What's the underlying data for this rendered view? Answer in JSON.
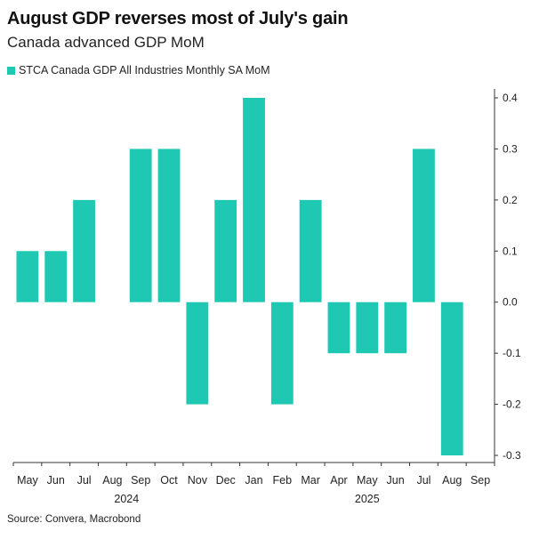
{
  "title": "August GDP reverses most of July's gain",
  "subtitle": "Canada advanced GDP MoM",
  "source": "Source: Convera, Macrobond",
  "colors": {
    "bar": "#1ec8b2",
    "axis": "#333333"
  },
  "chart_data": {
    "type": "bar",
    "series": [
      {
        "name": "STCA Canada GDP All Industries Monthly SA MoM",
        "categories": [
          "2024-05",
          "2024-06",
          "2024-07",
          "2024-08",
          "2024-09",
          "2024-10",
          "2024-11",
          "2024-12",
          "2025-01",
          "2025-02",
          "2025-03",
          "2025-04",
          "2025-05",
          "2025-06",
          "2025-07",
          "2025-08",
          "2025-09"
        ],
        "values": [
          0.1,
          0.1,
          0.2,
          null,
          0.3,
          0.3,
          -0.2,
          0.2,
          0.4,
          -0.2,
          0.2,
          -0.1,
          -0.1,
          -0.1,
          0.3,
          -0.3,
          null
        ]
      }
    ],
    "x_tick_labels": [
      "May",
      "Jun",
      "Jul",
      "Aug",
      "Sep",
      "Oct",
      "Nov",
      "Dec",
      "Jan",
      "Feb",
      "Mar",
      "Apr",
      "May",
      "Jun",
      "Jul",
      "Aug",
      "Sep"
    ],
    "x_group_labels": [
      {
        "label": "2024",
        "from": 0,
        "to": 7
      },
      {
        "label": "2025",
        "from": 8,
        "to": 16
      }
    ],
    "y_ticks": [
      0.4,
      0.3,
      0.2,
      0.1,
      0.0,
      -0.1,
      -0.2,
      -0.3
    ],
    "y_tick_labels": [
      "0.4",
      "0.3",
      "0.2",
      "0.1",
      "0.0",
      "-0.1",
      "-0.2",
      "-0.3"
    ],
    "ylim": [
      -0.3,
      0.4
    ],
    "y_axis_side": "right",
    "grid": false,
    "legend_position": "top-left"
  }
}
